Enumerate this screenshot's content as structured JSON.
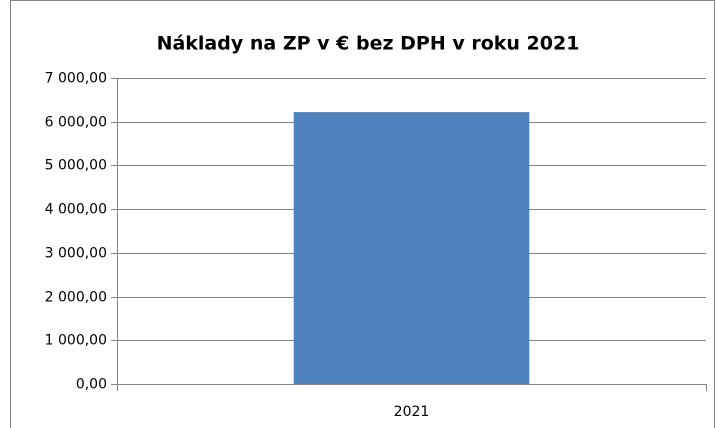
{
  "chart_data": {
    "type": "bar",
    "title": "Náklady na ZP v € bez DPH v roku 2021",
    "categories": [
      "2021"
    ],
    "values": [
      6220
    ],
    "color": "#4f81bd",
    "ylim": [
      0,
      7000
    ],
    "yticks": [
      {
        "value": 0,
        "label": "0,00"
      },
      {
        "value": 1000,
        "label": "1 000,00"
      },
      {
        "value": 2000,
        "label": "2 000,00"
      },
      {
        "value": 3000,
        "label": "3 000,00"
      },
      {
        "value": 4000,
        "label": "4 000,00"
      },
      {
        "value": 5000,
        "label": "5 000,00"
      },
      {
        "value": 6000,
        "label": "6 000,00"
      },
      {
        "value": 7000,
        "label": "7 000,00"
      }
    ],
    "grid": true
  }
}
